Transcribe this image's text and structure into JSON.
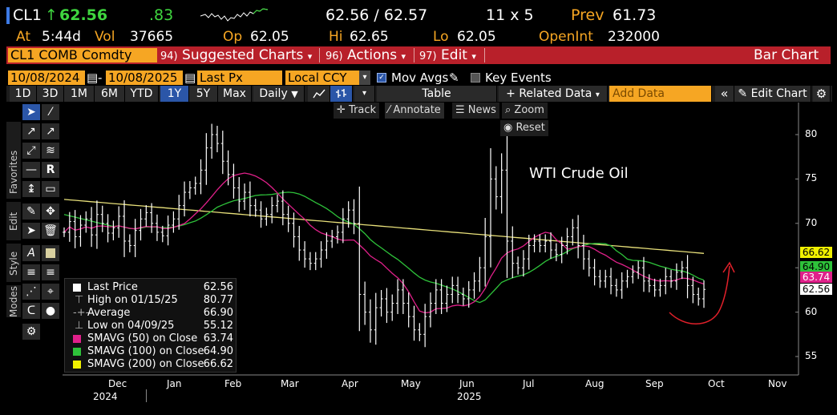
{
  "quote": {
    "ticker": "CL1",
    "arrow": "↑",
    "last": "62.56",
    "change": ".83",
    "bid_ask": "62.56 / 62.57",
    "size": "11 x 5",
    "prev_label": "Prev",
    "prev": "61.73",
    "at_label": "At",
    "at_time": "5:44d",
    "vol_label": "Vol",
    "vol": "37665",
    "open_label": "Op",
    "open": "62.05",
    "hi_label": "Hi",
    "hi": "62.65",
    "lo_label": "Lo",
    "lo": "62.05",
    "oi_label": "OpenInt",
    "oi": "232000"
  },
  "command_bar": {
    "security": "CL1 COMB Comdty",
    "suggested_num": "94)",
    "suggested": "Suggested Charts",
    "actions_num": "96)",
    "actions": "Actions",
    "edit_num": "97)",
    "edit": "Edit",
    "chart_type": "Bar Chart"
  },
  "range_bar": {
    "start_date": "10/08/2024",
    "end_date": "10/08/2025",
    "field": "Last Px",
    "currency": "Local CCY",
    "mov_avgs": "Mov Avgs",
    "key_events": "Key Events"
  },
  "toolbar": {
    "periods": [
      "1D",
      "3D",
      "1M",
      "6M",
      "YTD",
      "1Y",
      "5Y",
      "Max"
    ],
    "selected_period": "1Y",
    "frequency": "Daily",
    "table": "Table",
    "related_data": "Related Data",
    "add_data_placeholder": "Add Data",
    "edit_chart": "Edit Chart"
  },
  "left_tabs": [
    "Favorites",
    "Edit",
    "Style",
    "Modes"
  ],
  "chart_tools": {
    "track": "Track",
    "annotate": "Annotate",
    "news": "News",
    "zoom": "Zoom",
    "reset": "Reset"
  },
  "colors": {
    "amber": "#f6a623",
    "red_bar": "#b8202a",
    "sma50": "#e0208a",
    "sma100": "#2ec23a",
    "sma200": "#e8e07a",
    "last_price": "#ffffff",
    "arrow_annot": "#e0202a"
  },
  "legend": [
    {
      "label": "Last Price",
      "value": "62.56"
    },
    {
      "label": "High on 01/15/25",
      "value": "80.77"
    },
    {
      "label": "Average",
      "value": "66.90"
    },
    {
      "label": "Low on 04/09/25",
      "value": "55.12"
    },
    {
      "label": "SMAVG (50)  on Close",
      "value": "63.74"
    },
    {
      "label": "SMAVG (100)  on Close",
      "value": "64.90"
    },
    {
      "label": "SMAVG (200)  on Close",
      "value": "66.62"
    }
  ],
  "price_tags": [
    "66.62",
    "64.90",
    "63.74",
    "62.56"
  ],
  "annotation_text": "WTI Crude Oil",
  "chart_data": {
    "type": "bar",
    "title": "WTI Crude Oil",
    "x_labels": [
      "Dec",
      "Jan",
      "Feb",
      "Mar",
      "Apr",
      "May",
      "Jun",
      "Jul",
      "Aug",
      "Sep",
      "Oct",
      "Nov"
    ],
    "year_labels": [
      "2024",
      "2025"
    ],
    "y_ticks": [
      55,
      60,
      65,
      70,
      75,
      80
    ],
    "ylim": [
      52,
      83
    ],
    "series_close": [
      [
        0,
        69.0
      ],
      [
        2,
        70.2
      ],
      [
        4,
        68.5
      ],
      [
        6,
        69.8
      ],
      [
        8,
        70.5
      ],
      [
        10,
        68.7
      ],
      [
        12,
        71.0
      ],
      [
        14,
        70.0
      ],
      [
        16,
        68.9
      ],
      [
        18,
        69.5
      ],
      [
        20,
        70.8
      ],
      [
        22,
        68.0
      ],
      [
        24,
        67.5
      ],
      [
        26,
        69.2
      ],
      [
        28,
        70.5
      ],
      [
        30,
        71.2
      ],
      [
        32,
        70.0
      ],
      [
        34,
        69.0
      ],
      [
        36,
        68.6
      ],
      [
        38,
        69.8
      ],
      [
        40,
        70.5
      ],
      [
        42,
        72.0
      ],
      [
        44,
        73.5
      ],
      [
        46,
        74.0
      ],
      [
        48,
        74.5
      ],
      [
        50,
        76.0
      ],
      [
        52,
        78.5
      ],
      [
        54,
        80.0
      ],
      [
        56,
        79.0
      ],
      [
        58,
        77.0
      ],
      [
        60,
        75.5
      ],
      [
        62,
        74.0
      ],
      [
        64,
        72.5
      ],
      [
        66,
        73.5
      ],
      [
        68,
        72.0
      ],
      [
        70,
        71.5
      ],
      [
        72,
        70.5
      ],
      [
        74,
        71.0
      ],
      [
        76,
        72.0
      ],
      [
        78,
        72.5
      ],
      [
        80,
        71.0
      ],
      [
        82,
        70.0
      ],
      [
        84,
        68.5
      ],
      [
        86,
        67.0
      ],
      [
        88,
        66.0
      ],
      [
        90,
        65.5
      ],
      [
        92,
        66.0
      ],
      [
        94,
        67.0
      ],
      [
        96,
        68.0
      ],
      [
        98,
        68.5
      ],
      [
        100,
        69.0
      ],
      [
        102,
        70.5
      ],
      [
        104,
        71.5
      ],
      [
        106,
        70.0
      ],
      [
        108,
        62.0
      ],
      [
        110,
        60.0
      ],
      [
        112,
        58.0
      ],
      [
        114,
        60.5
      ],
      [
        116,
        61.5
      ],
      [
        118,
        60.0
      ],
      [
        120,
        61.0
      ],
      [
        122,
        62.5
      ],
      [
        124,
        61.0
      ],
      [
        126,
        59.5
      ],
      [
        128,
        58.0
      ],
      [
        130,
        57.5
      ],
      [
        132,
        59.5
      ],
      [
        134,
        61.0
      ],
      [
        136,
        62.5
      ],
      [
        138,
        61.0
      ],
      [
        140,
        62.0
      ],
      [
        142,
        63.0
      ],
      [
        144,
        62.0
      ],
      [
        146,
        61.5
      ],
      [
        148,
        62.5
      ],
      [
        150,
        63.5
      ],
      [
        152,
        65.0
      ],
      [
        154,
        68.5
      ],
      [
        156,
        75.0
      ],
      [
        158,
        73.0
      ],
      [
        160,
        76.0
      ],
      [
        162,
        68.0
      ],
      [
        164,
        65.5
      ],
      [
        166,
        65.0
      ],
      [
        168,
        66.0
      ],
      [
        170,
        67.5
      ],
      [
        172,
        68.0
      ],
      [
        174,
        67.5
      ],
      [
        176,
        68.0
      ],
      [
        178,
        67.0
      ],
      [
        180,
        66.5
      ],
      [
        182,
        67.5
      ],
      [
        184,
        68.5
      ],
      [
        186,
        69.5
      ],
      [
        188,
        67.5
      ],
      [
        190,
        66.0
      ],
      [
        192,
        65.0
      ],
      [
        194,
        64.0
      ],
      [
        196,
        63.5
      ],
      [
        198,
        64.0
      ],
      [
        200,
        63.0
      ],
      [
        202,
        62.5
      ],
      [
        204,
        63.5
      ],
      [
        206,
        64.0
      ],
      [
        208,
        64.5
      ],
      [
        210,
        65.0
      ],
      [
        212,
        63.5
      ],
      [
        214,
        63.0
      ],
      [
        216,
        62.5
      ],
      [
        218,
        63.0
      ],
      [
        220,
        64.0
      ],
      [
        222,
        63.5
      ],
      [
        224,
        64.5
      ],
      [
        226,
        65.0
      ],
      [
        228,
        63.0
      ],
      [
        230,
        62.0
      ],
      [
        232,
        61.5
      ],
      [
        234,
        62.56
      ]
    ],
    "series": [
      {
        "name": "SMAVG (50) on Close",
        "last": 63.74
      },
      {
        "name": "SMAVG (100) on Close",
        "last": 64.9
      },
      {
        "name": "SMAVG (200) on Close",
        "last": 66.62
      }
    ]
  }
}
